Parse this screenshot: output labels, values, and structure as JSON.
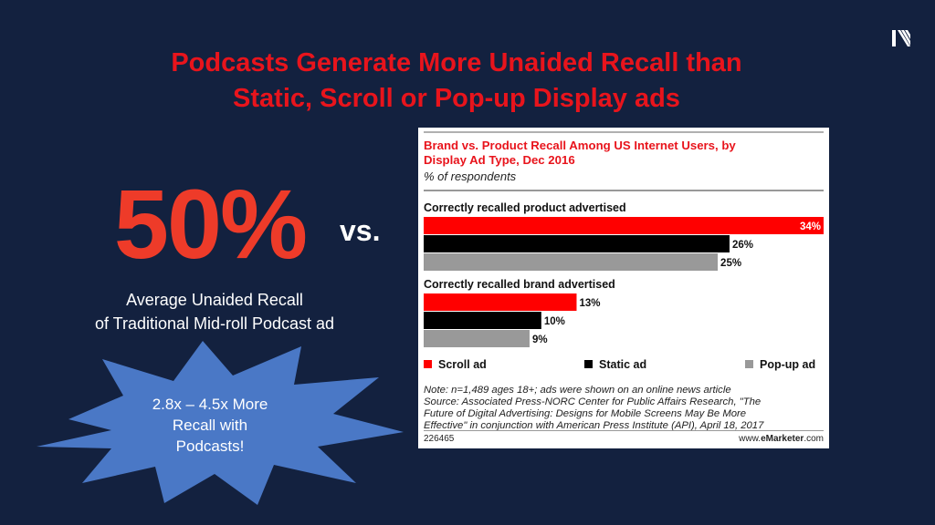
{
  "slide": {
    "title_line1": "Podcasts Generate More Unaided Recall than",
    "title_line2": "Static, Scroll or Pop-up Display ads",
    "big_stat": "50%",
    "vs": "vs.",
    "stat_caption_line1": "Average Unaided Recall",
    "stat_caption_line2": "of Traditional Mid-roll Podcast ad",
    "burst_line1": "2.8x – 4.5x More",
    "burst_line2": "Recall with",
    "burst_line3": "Podcasts!",
    "logo_icon": "chevron-stripes-logo-icon"
  },
  "colors": {
    "background": "#13213f",
    "title": "#e8141c",
    "big_stat": "#ee3b29",
    "burst": "#4a78c6"
  },
  "chart_data": {
    "type": "bar",
    "orientation": "horizontal",
    "title_line1": "Brand vs. Product Recall Among US Internet Users, by",
    "title_line2": "Display Ad Type, Dec 2016",
    "subtitle": "% of respondents",
    "groups": [
      {
        "label": "Correctly recalled product advertised",
        "values": [
          34,
          26,
          25
        ],
        "value_labels": [
          "34%",
          "26%",
          "25%"
        ]
      },
      {
        "label": "Correctly recalled brand advertised",
        "values": [
          13,
          10,
          9
        ],
        "value_labels": [
          "13%",
          "10%",
          "9%"
        ]
      }
    ],
    "series": [
      {
        "name": "Scroll ad",
        "color": "#ff0000"
      },
      {
        "name": "Static ad",
        "color": "#000000"
      },
      {
        "name": "Pop-up ad",
        "color": "#999999"
      }
    ],
    "xlim": [
      0,
      34
    ],
    "legend_position": "bottom",
    "note_lines": [
      "Note: n=1,489 ages 18+; ads were shown on an online news article",
      "Source: Associated Press-NORC Center for Public Affairs Research, \"The",
      "Future of Digital Advertising: Designs for Mobile Screens May Be More",
      "Effective\" in conjunction with American Press Institute (API), April 18, 2017"
    ],
    "chart_id": "226465",
    "source_prefix": "www.",
    "source_brand": "eMarketer",
    "source_suffix": ".com"
  }
}
